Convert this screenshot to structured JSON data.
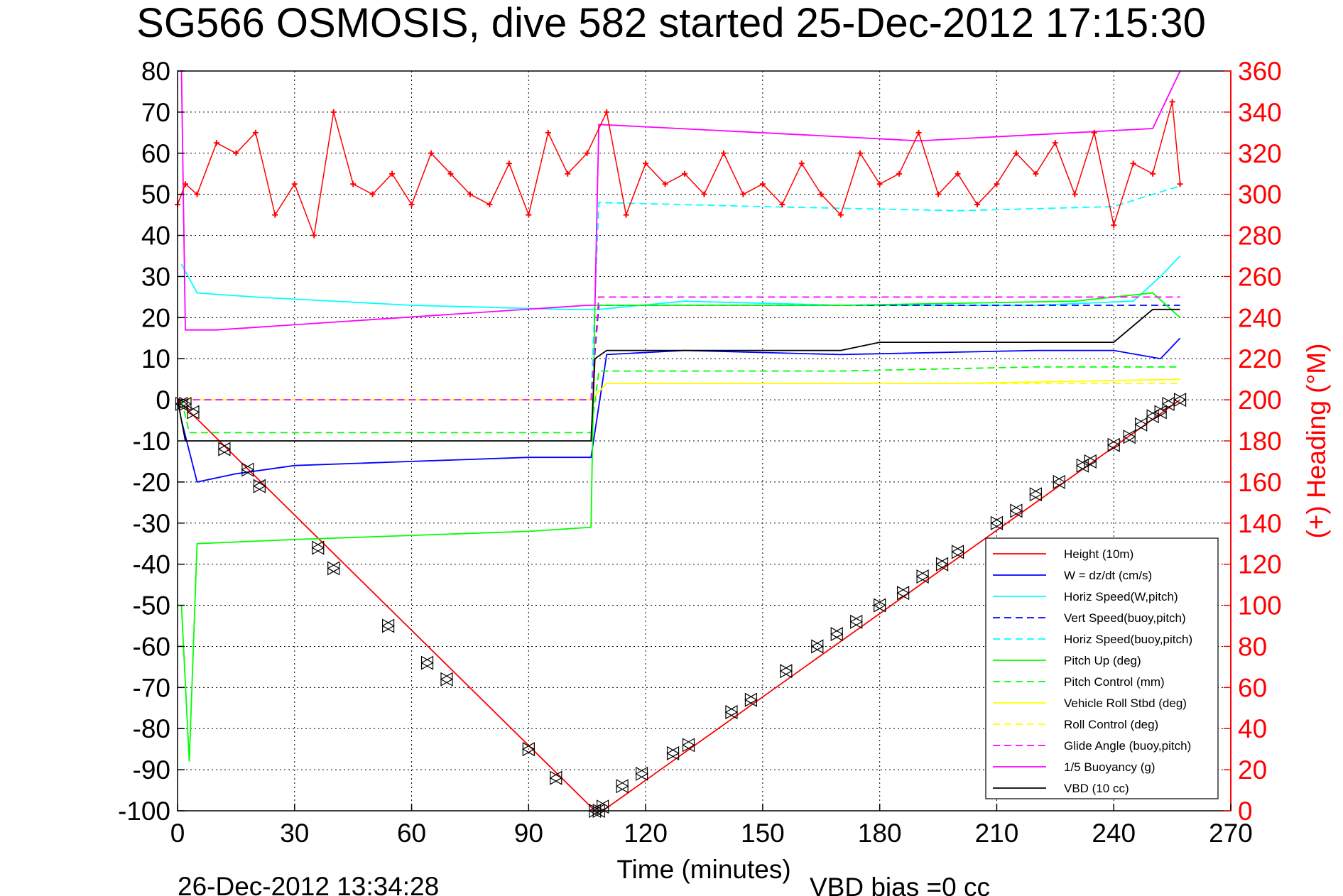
{
  "chart_data": {
    "type": "line",
    "title": "SG566 OSMOSIS, dive 582 started 25-Dec-2012 17:15:30",
    "xlabel": "Time (minutes)",
    "ylabel_right": "(+) Heading (°M)",
    "footer_date": "26-Dec-2012 13:34:28",
    "footer_bias": "VBD bias =0 cc",
    "xlim": [
      0,
      270
    ],
    "ylim": [
      -100,
      80
    ],
    "ylim_right": [
      0,
      360
    ],
    "x_ticks": [
      "0",
      "30",
      "60",
      "90",
      "120",
      "150",
      "180",
      "210",
      "240",
      "270"
    ],
    "y_ticks": [
      "80",
      "70",
      "60",
      "50",
      "40",
      "30",
      "20",
      "10",
      "0",
      "-10",
      "-20",
      "-30",
      "-40",
      "-50",
      "-60",
      "-70",
      "-80",
      "-90",
      "-100"
    ],
    "y_right_ticks": [
      "360",
      "340",
      "320",
      "300",
      "280",
      "260",
      "240",
      "220",
      "200",
      "180",
      "160",
      "140",
      "120",
      "100",
      "80",
      "60",
      "40",
      "20",
      "0"
    ],
    "grid": true,
    "legend_position": "lower-right",
    "legend": [
      {
        "label": "Height (10m)",
        "color": "#ff0000",
        "dash": "solid"
      },
      {
        "label": "W = dz/dt (cm/s)",
        "color": "#0000ff",
        "dash": "solid"
      },
      {
        "label": "Horiz Speed(W,pitch)",
        "color": "#00ffff",
        "dash": "solid"
      },
      {
        "label": "Vert Speed(buoy,pitch)",
        "color": "#0000ff",
        "dash": "dashed"
      },
      {
        "label": "Horiz Speed(buoy,pitch)",
        "color": "#00ffff",
        "dash": "dashed"
      },
      {
        "label": "Pitch Up (deg)",
        "color": "#00ff00",
        "dash": "solid"
      },
      {
        "label": "Pitch Control (mm)",
        "color": "#00ff00",
        "dash": "dashed"
      },
      {
        "label": "Vehicle Roll Stbd (deg)",
        "color": "#ffff00",
        "dash": "solid"
      },
      {
        "label": "Roll Control (deg)",
        "color": "#ffff00",
        "dash": "dashed"
      },
      {
        "label": "Glide Angle (buoy,pitch)",
        "color": "#ff00ff",
        "dash": "dashed"
      },
      {
        "label": "1/5 Buoyancy (g)",
        "color": "#ff00ff",
        "dash": "solid"
      },
      {
        "label": "VBD (10 cc)",
        "color": "#000000",
        "dash": "solid"
      }
    ],
    "series": [
      {
        "name": "Height (10m)",
        "x": [
          0,
          107,
          109,
          257
        ],
        "y": [
          0,
          -100,
          -100,
          0
        ]
      },
      {
        "name": "W = dz/dt (cm/s)",
        "x": [
          1,
          5,
          15,
          30,
          60,
          90,
          106,
          110,
          130,
          170,
          220,
          240,
          252,
          257
        ],
        "y": [
          -5,
          -20,
          -18,
          -16,
          -15,
          -14,
          -14,
          11,
          12,
          11,
          12,
          12,
          10,
          15
        ]
      },
      {
        "name": "Horiz Speed(W,pitch)",
        "x": [
          1,
          5,
          20,
          60,
          100,
          106,
          108,
          130,
          170,
          220,
          245,
          252,
          257
        ],
        "y": [
          33,
          26,
          25,
          23,
          22,
          22,
          22,
          24,
          23,
          23,
          24,
          30,
          35
        ]
      },
      {
        "name": "Vert Speed(buoy,pitch)",
        "x": [
          1,
          106,
          108,
          200,
          250,
          257
        ],
        "y": [
          0,
          0,
          23,
          23,
          23,
          23
        ]
      },
      {
        "name": "Horiz Speed(buoy,pitch)",
        "x": [
          1,
          106,
          108,
          150,
          200,
          240,
          250,
          257
        ],
        "y": [
          0,
          0,
          48,
          47,
          46,
          47,
          50,
          52
        ]
      },
      {
        "name": "Pitch Up (deg)",
        "x": [
          1,
          3,
          5,
          30,
          60,
          90,
          106,
          107,
          120,
          170,
          230,
          250,
          257
        ],
        "y": [
          -50,
          -88,
          -35,
          -34,
          -33,
          -32,
          -31,
          23,
          23,
          23,
          24,
          26,
          20
        ]
      },
      {
        "name": "Pitch Control (mm)",
        "x": [
          1,
          3,
          106,
          108,
          170,
          220,
          257
        ],
        "y": [
          0,
          -8,
          -8,
          7,
          7,
          8,
          8
        ]
      },
      {
        "name": "Vehicle Roll Stbd (deg)",
        "x": [
          0,
          5,
          60,
          106,
          110,
          200,
          257
        ],
        "y": [
          0,
          0,
          0,
          0,
          4,
          4,
          5
        ]
      },
      {
        "name": "Roll Control (deg)",
        "x": [
          0,
          106,
          110,
          257
        ],
        "y": [
          0,
          0,
          4,
          4
        ]
      },
      {
        "name": "Glide Angle (buoy,pitch)",
        "x": [
          1,
          106,
          108,
          200,
          257
        ],
        "y": [
          0,
          0,
          25,
          25,
          25
        ]
      },
      {
        "name": "1/5 Buoyancy (g)",
        "x": [
          1,
          2,
          10,
          105,
          107,
          108,
          170,
          190,
          250,
          257
        ],
        "y": [
          80,
          17,
          17,
          23,
          23,
          67,
          64,
          63,
          66,
          80
        ]
      },
      {
        "name": "VBD (10 cc)",
        "x": [
          0,
          2,
          106,
          107,
          110,
          170,
          180,
          240,
          250,
          257
        ],
        "y": [
          0,
          -10,
          -10,
          10,
          12,
          12,
          14,
          14,
          22,
          22
        ]
      },
      {
        "name": "(+) Heading (°M)",
        "axis": "right",
        "x": [
          0,
          2,
          5,
          10,
          15,
          20,
          25,
          30,
          35,
          40,
          45,
          50,
          55,
          60,
          65,
          70,
          75,
          80,
          85,
          90,
          95,
          100,
          105,
          110,
          115,
          120,
          125,
          130,
          135,
          140,
          145,
          150,
          155,
          160,
          165,
          170,
          175,
          180,
          185,
          190,
          195,
          200,
          205,
          210,
          215,
          220,
          225,
          230,
          235,
          240,
          245,
          250,
          255,
          257
        ],
        "y": [
          295,
          305,
          300,
          325,
          320,
          330,
          290,
          305,
          280,
          340,
          305,
          300,
          310,
          295,
          320,
          310,
          300,
          295,
          315,
          290,
          330,
          310,
          320,
          340,
          290,
          315,
          305,
          310,
          300,
          320,
          300,
          305,
          295,
          315,
          300,
          290,
          320,
          305,
          310,
          330,
          300,
          310,
          295,
          305,
          320,
          310,
          325,
          300,
          330,
          285,
          315,
          310,
          345,
          305
        ]
      }
    ],
    "markers": {
      "name": "Height (10m)",
      "shape": "triangle",
      "x": [
        1,
        2,
        4,
        12,
        18,
        21,
        36,
        40,
        54,
        64,
        69,
        90,
        97,
        107,
        108,
        109,
        114,
        119,
        127,
        131,
        142,
        147,
        156,
        164,
        169,
        174,
        180,
        186,
        191,
        196,
        200,
        210,
        215,
        220,
        226,
        232,
        234,
        240,
        244,
        247,
        250,
        252,
        254,
        257
      ],
      "y": [
        -1,
        -1,
        -3,
        -12,
        -17,
        -21,
        -36,
        -41,
        -55,
        -64,
        -68,
        -85,
        -92,
        -100,
        -100,
        -99,
        -94,
        -91,
        -86,
        -84,
        -76,
        -73,
        -66,
        -60,
        -57,
        -54,
        -50,
        -47,
        -43,
        -40,
        -37,
        -30,
        -27,
        -23,
        -20,
        -16,
        -15,
        -11,
        -9,
        -6,
        -4,
        -3,
        -1,
        0
      ]
    }
  }
}
